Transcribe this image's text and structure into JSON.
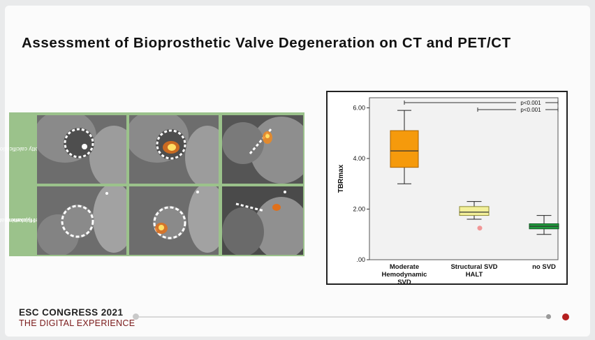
{
  "slide": {
    "title": "Assessment of Bioprosthetic Valve Degeneration on CT and PET/CT"
  },
  "images": {
    "rows": [
      {
        "label_line1": "Spotty calcification",
        "label_line2": ""
      },
      {
        "label_line1": "Hypoattenuated",
        "label_line2": "leaflet thickening"
      }
    ]
  },
  "chart_data": {
    "type": "boxplot",
    "ylabel": "TBRmax",
    "ylim": [
      0,
      6.4
    ],
    "yticks": [
      {
        "value": 0,
        "label": ".00"
      },
      {
        "value": 2,
        "label": "2.00"
      },
      {
        "value": 4,
        "label": "4.00"
      },
      {
        "value": 6,
        "label": "6.00"
      }
    ],
    "categories": [
      {
        "lines": [
          "Moderate",
          "Hemodynamic",
          "SVD"
        ]
      },
      {
        "lines": [
          "Structural SVD",
          "HALT"
        ]
      },
      {
        "lines": [
          "no SVD"
        ]
      }
    ],
    "boxes": [
      {
        "min": 3.0,
        "q1": 3.65,
        "median": 4.3,
        "q3": 5.1,
        "max": 5.9,
        "color": "#f59a0c",
        "stroke": "#a86200",
        "outliers": []
      },
      {
        "min": 1.6,
        "q1": 1.75,
        "median": 1.88,
        "q3": 2.1,
        "max": 2.3,
        "color": "#f3f09a",
        "stroke": "#8d8a32",
        "outliers": [
          1.25
        ]
      },
      {
        "min": 1.0,
        "q1": 1.22,
        "median": 1.32,
        "q3": 1.42,
        "max": 1.75,
        "color": "#1f9b3c",
        "stroke": "#0f5a22",
        "outliers": []
      }
    ],
    "annotations": [
      {
        "label": "p<0.001",
        "from": 0,
        "to": 2
      },
      {
        "label": "p<0.001",
        "from": 1,
        "to": 2
      }
    ],
    "colors": {
      "outlier": "#f08080"
    }
  },
  "footer": {
    "line1": "ESC CONGRESS 2021",
    "line2": "THE DIGITAL EXPERIENCE"
  }
}
